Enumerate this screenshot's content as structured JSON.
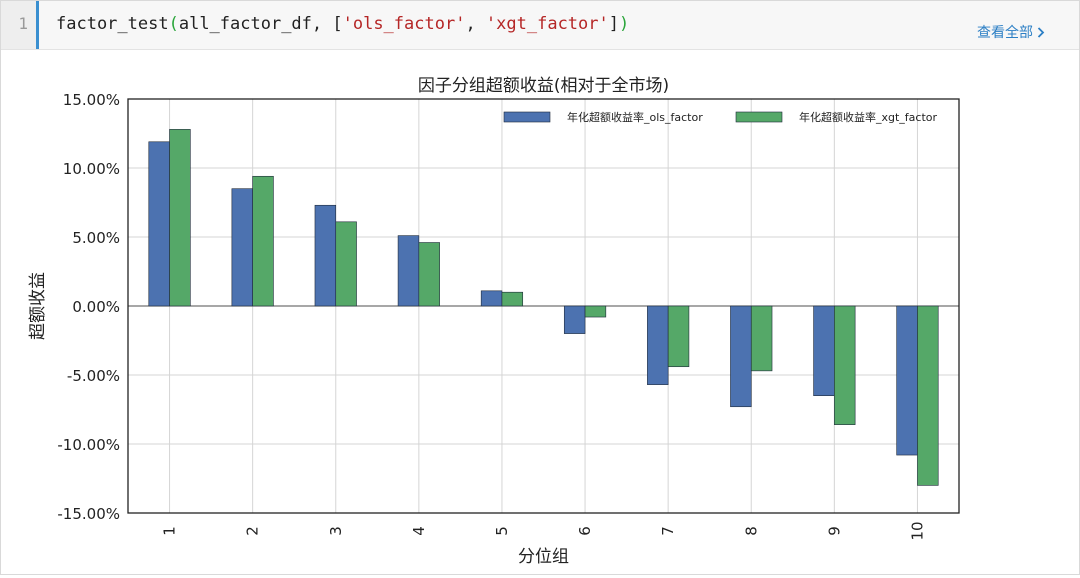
{
  "cell": {
    "line_number": "1",
    "code": {
      "fn": "factor_test",
      "open_paren": "(",
      "arg1": "all_factor_df, [",
      "str1": "'ols_factor'",
      "sep": ", ",
      "str2": "'xgt_factor'",
      "close_bracket": "]",
      "close_paren": ")"
    },
    "view_all_label": "查看全部",
    "view_all_icon": "chevron-right-icon"
  },
  "chart_data": {
    "type": "bar",
    "title": "因子分组超额收益(相对于全市场)",
    "xlabel": "分位组",
    "ylabel": "超额收益",
    "categories": [
      "1",
      "2",
      "3",
      "4",
      "5",
      "6",
      "7",
      "8",
      "9",
      "10"
    ],
    "series": [
      {
        "name": "年化超额收益率_ols_factor",
        "color": "#4c72b0",
        "values": [
          11.9,
          8.5,
          7.3,
          5.1,
          1.1,
          -2.0,
          -5.7,
          -7.3,
          -6.5,
          -10.8
        ]
      },
      {
        "name": "年化超额收益率_xgt_factor",
        "color": "#55a868",
        "values": [
          12.8,
          9.4,
          6.1,
          4.6,
          1.0,
          -0.8,
          -4.4,
          -4.7,
          -8.6,
          -13.0
        ]
      }
    ],
    "ylim": [
      -15,
      15
    ],
    "yticks": [
      15,
      10,
      5,
      0,
      -5,
      -10,
      -15
    ],
    "ytick_labels": [
      "15.00%",
      "10.00%",
      "5.00%",
      "0.00%",
      "-5.00%",
      "-10.00%",
      "-15.00%"
    ],
    "grid": true,
    "legend_position": "top-right"
  }
}
